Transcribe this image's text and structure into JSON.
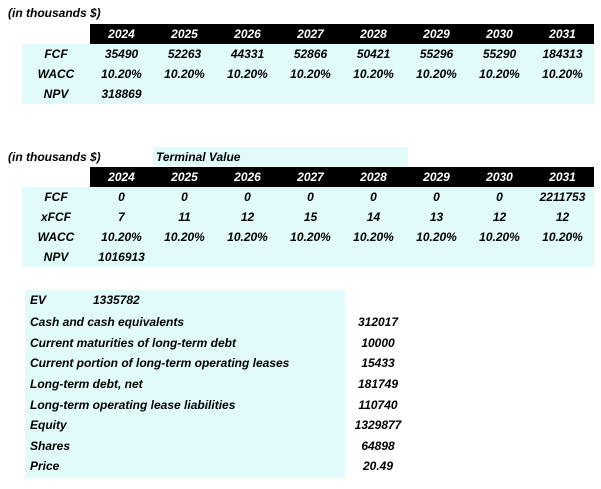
{
  "table1": {
    "caption": "(in thousands $)",
    "years": [
      "2024",
      "2025",
      "2026",
      "2027",
      "2028",
      "2029",
      "2030",
      "2031"
    ],
    "rows": [
      {
        "label": "FCF",
        "values": [
          "35490",
          "52263",
          "44331",
          "52866",
          "50421",
          "55296",
          "55290",
          "184313"
        ]
      },
      {
        "label": "WACC",
        "values": [
          "10.20%",
          "10.20%",
          "10.20%",
          "10.20%",
          "10.20%",
          "10.20%",
          "10.20%",
          "10.20%"
        ]
      },
      {
        "label": "NPV",
        "values": [
          "318869",
          "",
          "",
          "",
          "",
          "",
          "",
          ""
        ]
      }
    ]
  },
  "table2": {
    "caption": "(in thousands $)",
    "subtitle": "Terminal Value",
    "years": [
      "2024",
      "2025",
      "2026",
      "2027",
      "2028",
      "2029",
      "2030",
      "2031"
    ],
    "rows": [
      {
        "label": "FCF",
        "values": [
          "0",
          "0",
          "0",
          "0",
          "0",
          "0",
          "0",
          "2211753"
        ]
      },
      {
        "label": "xFCF",
        "values": [
          "7",
          "11",
          "12",
          "15",
          "14",
          "13",
          "12",
          "12"
        ]
      },
      {
        "label": "WACC",
        "values": [
          "10.20%",
          "10.20%",
          "10.20%",
          "10.20%",
          "10.20%",
          "10.20%",
          "10.20%",
          "10.20%"
        ]
      },
      {
        "label": "NPV",
        "values": [
          "1016913",
          "",
          "",
          "",
          "",
          "",
          "",
          ""
        ]
      }
    ]
  },
  "summary": {
    "ev_label": "EV",
    "ev_value": "1335782",
    "items": [
      {
        "label": "Cash and cash equivalents",
        "value": "312017"
      },
      {
        "label": "Current maturities of long-term debt",
        "value": "10000"
      },
      {
        "label": "Current portion of long-term operating leases",
        "value": "15433"
      },
      {
        "label": "Long-term debt, net",
        "value": "181749"
      },
      {
        "label": "Long-term operating lease liabilities",
        "value": "110740"
      },
      {
        "label": "Equity",
        "value": "1329877"
      },
      {
        "label": "Shares",
        "value": "64898"
      },
      {
        "label": "Price",
        "value": "20.49"
      }
    ]
  },
  "colors": {
    "cyan_fill": "#e1fafa",
    "header_fill": "#000000"
  }
}
